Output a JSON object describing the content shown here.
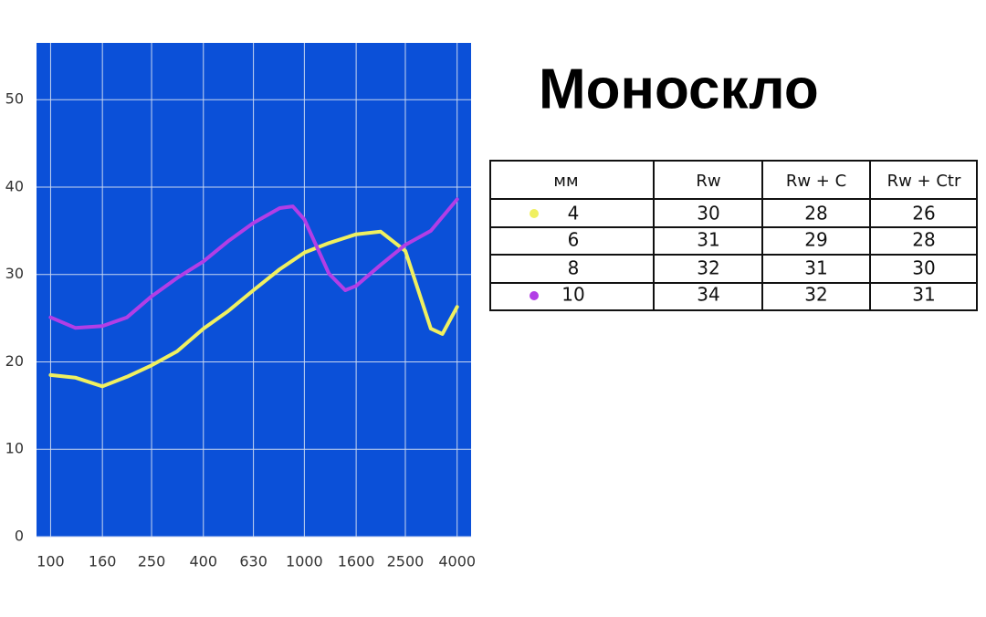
{
  "title": "Моноскло",
  "chart_data": {
    "type": "line",
    "log_x": true,
    "grid": true,
    "background": "#0b50d8",
    "xlim": [
      88,
      4540
    ],
    "ylim": [
      0,
      56.5
    ],
    "xticks": [
      100,
      160,
      250,
      400,
      630,
      1000,
      1600,
      2500,
      4000
    ],
    "yticks": [
      0,
      10,
      20,
      30,
      40,
      50
    ],
    "series": [
      {
        "color": "#f0f060",
        "x": [
          100,
          125,
          160,
          200,
          250,
          315,
          400,
          500,
          630,
          800,
          1000,
          1250,
          1600,
          2000,
          2500,
          3150,
          3500,
          4000
        ],
        "values": [
          18.5,
          18.2,
          17.2,
          18.3,
          19.6,
          21.2,
          23.8,
          25.8,
          28.2,
          30.6,
          32.5,
          33.6,
          34.6,
          34.9,
          32.7,
          23.8,
          23.2,
          26.3
        ]
      },
      {
        "color": "#b23ee6",
        "x": [
          100,
          125,
          160,
          200,
          250,
          315,
          400,
          500,
          630,
          800,
          900,
          1000,
          1250,
          1450,
          1600,
          2000,
          2500,
          3150,
          4000
        ],
        "values": [
          25.1,
          23.9,
          24.1,
          25.1,
          27.5,
          29.6,
          31.5,
          33.8,
          35.9,
          37.6,
          37.8,
          36.3,
          30.1,
          28.2,
          28.7,
          31.1,
          33.4,
          35.0,
          38.6
        ]
      }
    ]
  },
  "table": {
    "header": [
      "мм",
      "Rw",
      "Rw + C",
      "Rw + Ctr"
    ],
    "rows": [
      [
        4,
        30,
        28,
        26
      ],
      [
        6,
        31,
        29,
        28
      ],
      [
        8,
        32,
        31,
        30
      ],
      [
        10,
        34,
        32,
        31
      ]
    ]
  }
}
